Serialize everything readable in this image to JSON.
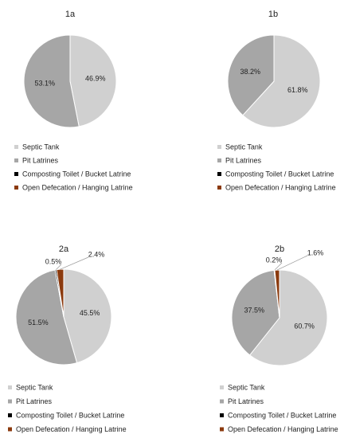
{
  "chart_data": [
    {
      "type": "pie",
      "title": "1a",
      "categories": [
        "Septic Tank",
        "Pit Latrines",
        "Composting Toilet / Bucket Latrine",
        "Open Defecation / Hanging Latrine"
      ],
      "values": [
        46.9,
        53.1,
        0,
        0
      ],
      "value_labels": [
        "46.9%",
        "53.1%",
        null,
        null
      ],
      "colors": [
        "#d0d0d0",
        "#a6a6a6",
        "#000000",
        "#8b3a0e"
      ]
    },
    {
      "type": "pie",
      "title": "1b",
      "categories": [
        "Septic Tank",
        "Pit Latrines",
        "Composting Toilet / Bucket Latrine",
        "Open Defecation / Hanging Latrine"
      ],
      "values": [
        61.8,
        38.2,
        0,
        0
      ],
      "value_labels": [
        "61.8%",
        "38.2%",
        null,
        null
      ],
      "colors": [
        "#d0d0d0",
        "#a6a6a6",
        "#000000",
        "#8b3a0e"
      ]
    },
    {
      "type": "pie",
      "title": "2a",
      "categories": [
        "Septic Tank",
        "Pit Latrines",
        "Composting Toilet / Bucket Latrine",
        "Open Defecation / Hanging Latrine"
      ],
      "values": [
        45.5,
        51.5,
        0.5,
        2.4
      ],
      "value_labels": [
        "45.5%",
        "51.5%",
        "0.5%",
        "2.4%"
      ],
      "colors": [
        "#d0d0d0",
        "#a6a6a6",
        "#000000",
        "#8b3a0e"
      ]
    },
    {
      "type": "pie",
      "title": "2b",
      "categories": [
        "Septic Tank",
        "Pit Latrines",
        "Composting Toilet / Bucket Latrine",
        "Open Defecation / Hanging Latrine"
      ],
      "values": [
        60.7,
        37.5,
        0.2,
        1.6
      ],
      "value_labels": [
        "60.7%",
        "37.5%",
        "0.2%",
        "1.6%"
      ],
      "colors": [
        "#d0d0d0",
        "#a6a6a6",
        "#000000",
        "#8b3a0e"
      ]
    }
  ]
}
